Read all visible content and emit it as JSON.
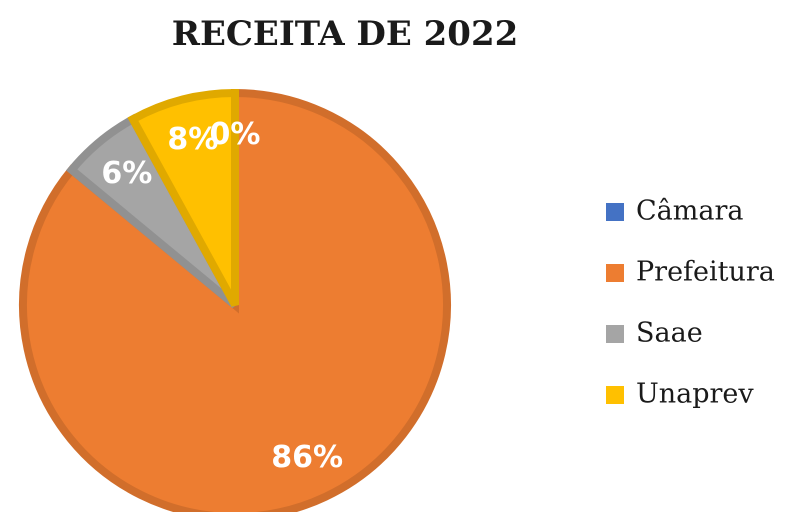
{
  "chart_data": {
    "type": "pie",
    "title": "RECEITA DE 2022",
    "categories": [
      "Câmara",
      "Prefeitura",
      "Saae",
      "Unaprev"
    ],
    "values": [
      0,
      86,
      6,
      8
    ],
    "value_labels": [
      "0%",
      "86%",
      "6%",
      "8%"
    ],
    "colors": [
      "#4472C4",
      "#ED7D31",
      "#A5A5A5",
      "#FFC000"
    ],
    "legend": "right"
  }
}
